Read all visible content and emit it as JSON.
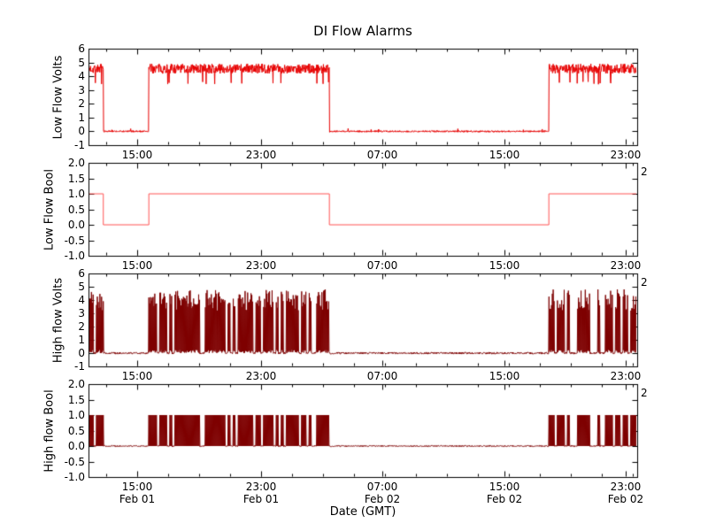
{
  "chart_data": {
    "type": "line",
    "title": "DI Flow Alarms",
    "xlabel": "Date (GMT)",
    "x_axis": {
      "ticks": [
        {
          "time": "15:00",
          "date": "Feb 01",
          "frac": 0.0887
        },
        {
          "time": "23:00",
          "date": "Feb 01",
          "frac": 0.3145
        },
        {
          "time": "07:00",
          "date": "Feb 02",
          "frac": 0.5355
        },
        {
          "time": "15:00",
          "date": "Feb 02",
          "frac": 0.7581
        },
        {
          "time": "23:00",
          "date": "Feb 02",
          "frac": 0.979
        }
      ],
      "minor_step_frac": 0.05645
    },
    "subplots": [
      {
        "ylabel": "Low Flow Volts",
        "ylim": [
          -1,
          6
        ],
        "yticks": [
          "-1",
          "0",
          "1",
          "2",
          "3",
          "4",
          "5",
          "6"
        ],
        "color": "#e80000",
        "kind": "analog",
        "seed": 7,
        "high_level": 4.55,
        "high_noise": 0.35,
        "low_noise": 0.06,
        "right_label": "",
        "segments": [
          {
            "from": 0.0,
            "to": 0.027,
            "on": true
          },
          {
            "from": 0.027,
            "to": 0.11,
            "on": false
          },
          {
            "from": 0.11,
            "to": 0.439,
            "on": true
          },
          {
            "from": 0.439,
            "to": 0.839,
            "on": false
          },
          {
            "from": 0.839,
            "to": 1.0,
            "on": true
          }
        ]
      },
      {
        "ylabel": "Low Flow Bool",
        "ylim": [
          -1,
          2
        ],
        "yticks": [
          "-1.0",
          "-0.5",
          "0.0",
          "0.5",
          "1.0",
          "1.5",
          "2.0"
        ],
        "color": "#ff5555",
        "kind": "bool",
        "seed": 9,
        "right_label": "2",
        "segments": [
          {
            "from": 0.0,
            "to": 0.027,
            "on": true
          },
          {
            "from": 0.027,
            "to": 0.11,
            "on": false
          },
          {
            "from": 0.11,
            "to": 0.439,
            "on": true
          },
          {
            "from": 0.439,
            "to": 0.839,
            "on": false
          },
          {
            "from": 0.839,
            "to": 1.0,
            "on": true
          }
        ]
      },
      {
        "ylabel": "High flow Volts",
        "ylim": [
          -1,
          6
        ],
        "yticks": [
          "-1",
          "0",
          "1",
          "2",
          "3",
          "4",
          "5",
          "6"
        ],
        "color": "#7e0000",
        "kind": "burst_analog",
        "seed": 42,
        "high_level": 4.0,
        "high_noise": 0.8,
        "low_noise": 0.07,
        "density": 0.72,
        "right_label": "2",
        "segments": [
          {
            "from": 0.0,
            "to": 0.027,
            "on": true
          },
          {
            "from": 0.027,
            "to": 0.11,
            "on": false
          },
          {
            "from": 0.11,
            "to": 0.439,
            "on": true
          },
          {
            "from": 0.439,
            "to": 0.839,
            "on": false
          },
          {
            "from": 0.839,
            "to": 1.0,
            "on": true
          }
        ]
      },
      {
        "ylabel": "High flow Bool",
        "ylim": [
          -1,
          2
        ],
        "yticks": [
          "-1.0",
          "-0.5",
          "0.0",
          "0.5",
          "1.0",
          "1.5",
          "2.0"
        ],
        "color": "#7e0000",
        "kind": "burst_bool",
        "seed": 42,
        "low_noise": 0.02,
        "density": 0.72,
        "right_label": "2",
        "segments": [
          {
            "from": 0.0,
            "to": 0.027,
            "on": true
          },
          {
            "from": 0.027,
            "to": 0.11,
            "on": false
          },
          {
            "from": 0.11,
            "to": 0.439,
            "on": true
          },
          {
            "from": 0.439,
            "to": 0.839,
            "on": false
          },
          {
            "from": 0.839,
            "to": 1.0,
            "on": true
          }
        ]
      }
    ]
  }
}
